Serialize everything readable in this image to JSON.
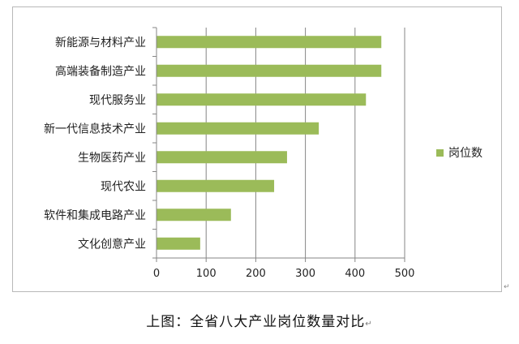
{
  "chart_data": {
    "type": "bar",
    "orientation": "horizontal",
    "categories": [
      "新能源与材料产业",
      "高端装备制造产业",
      "现代服务业",
      "新一代信息技术产业",
      "生物医药产业",
      "现代农业",
      "软件和集成电路产业",
      "文化创意产业"
    ],
    "series": [
      {
        "name": "岗位数",
        "values": [
          453,
          453,
          422,
          327,
          263,
          237,
          150,
          88
        ],
        "color": "#9bbb59"
      }
    ],
    "xlim": [
      0,
      500
    ],
    "xticks": [
      "0",
      "100",
      "200",
      "300",
      "400",
      "500"
    ],
    "grid": true,
    "legend": "right"
  },
  "caption": "上图：全省八大产业岗位数量对比",
  "paragraph_mark": "↵"
}
